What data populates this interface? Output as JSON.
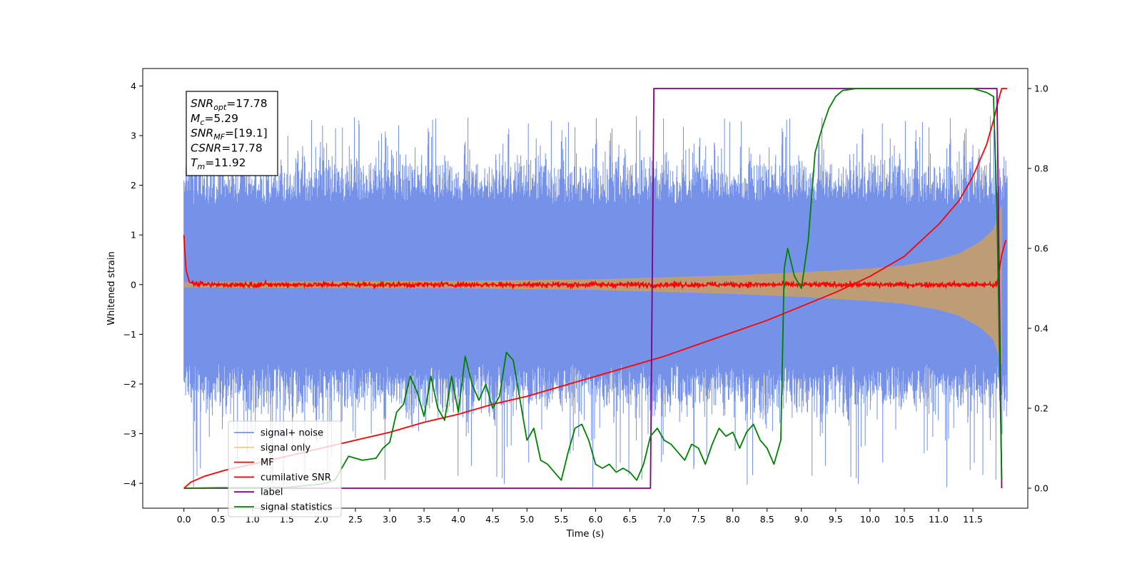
{
  "chart_data": {
    "type": "line",
    "xlabel": "Time (s)",
    "ylabel": "Whitened strain",
    "xlim": [
      -0.6,
      12.3
    ],
    "ylim": [
      -4.5,
      4.35
    ],
    "y2lim": [
      -0.05,
      1.05
    ],
    "xticks": [
      0.0,
      0.5,
      1.0,
      1.5,
      2.0,
      2.5,
      3.0,
      3.5,
      4.0,
      4.5,
      5.0,
      5.5,
      6.0,
      6.5,
      7.0,
      7.5,
      8.0,
      8.5,
      9.0,
      9.5,
      10.0,
      10.5,
      11.0,
      11.5
    ],
    "xtick_labels": [
      "0.0",
      "0.5",
      "1.0",
      "1.5",
      "2.0",
      "2.5",
      "3.0",
      "3.5",
      "4.0",
      "4.5",
      "5.0",
      "5.5",
      "6.0",
      "6.5",
      "7.0",
      "7.5",
      "8.0",
      "8.5",
      "9.0",
      "9.5",
      "10.0",
      "10.5",
      "11.0",
      "11.5"
    ],
    "yticks": [
      -4,
      -3,
      -2,
      -1,
      0,
      1,
      2,
      3,
      4
    ],
    "ytick_labels": [
      "−4",
      "−3",
      "−2",
      "−1",
      "0",
      "1",
      "2",
      "3",
      "4"
    ],
    "y2ticks": [
      0.0,
      0.2,
      0.4,
      0.6,
      0.8,
      1.0
    ],
    "y2tick_labels": [
      "0.0",
      "0.2",
      "0.4",
      "0.6",
      "0.8",
      "1.0"
    ],
    "grid": false,
    "legend_position": "lower-left",
    "colors": {
      "signal_noise": "#6a89e6",
      "signal_only": "#c8a070",
      "mf": "#ff0000",
      "cumulative_snr": "#ff0000",
      "label": "#800080",
      "signal_statistics": "#008000"
    },
    "info_box": [
      {
        "sym": "SNR",
        "sub": "opt",
        "val": "=17.78"
      },
      {
        "sym": "M",
        "sub": "c",
        "val": "=5.29"
      },
      {
        "sym": "SNR",
        "sub": "MF",
        "val": "=[19.1]"
      },
      {
        "sym": "CSNR",
        "sub": "",
        "val": "=17.78"
      },
      {
        "sym": "T",
        "sub": "m",
        "val": "=11.92"
      }
    ],
    "series": [
      {
        "name": "signal+ noise",
        "axis": "left",
        "style": "noise band",
        "duration": 12.0,
        "envelope": {
          "mean_high": 1.6,
          "mean_low": -1.6,
          "peak_high": 3.4,
          "peak_low": -4.1
        }
      },
      {
        "name": "signal only",
        "axis": "left",
        "style": "chirp envelope",
        "amplitude": {
          "t": [
            0.0,
            4.0,
            6.0,
            8.0,
            9.0,
            10.0,
            10.5,
            11.0,
            11.3,
            11.6,
            11.8,
            11.92
          ],
          "a": [
            0.05,
            0.07,
            0.1,
            0.18,
            0.24,
            0.32,
            0.38,
            0.5,
            0.62,
            0.85,
            1.1,
            1.6
          ]
        }
      },
      {
        "name": "MF",
        "axis": "left",
        "style": "noisy line",
        "points": {
          "t": [
            0.0,
            0.03,
            0.08,
            0.15,
            0.3,
            11.85,
            11.92,
            11.98
          ],
          "v": [
            1.0,
            0.3,
            0.05,
            0.02,
            0.0,
            0.0,
            0.6,
            0.9
          ]
        }
      },
      {
        "name": "cumilative SNR",
        "axis": "right",
        "x": [
          0.0,
          0.1,
          0.3,
          0.6,
          1.0,
          1.5,
          2.0,
          2.5,
          3.0,
          3.5,
          4.0,
          4.5,
          5.0,
          5.5,
          6.0,
          6.5,
          7.0,
          7.5,
          8.0,
          8.5,
          9.0,
          9.5,
          10.0,
          10.5,
          11.0,
          11.3,
          11.5,
          11.7,
          11.8,
          11.87,
          11.92,
          12.0
        ],
        "y": [
          0.0,
          0.015,
          0.03,
          0.045,
          0.06,
          0.08,
          0.1,
          0.12,
          0.14,
          0.165,
          0.185,
          0.21,
          0.23,
          0.255,
          0.28,
          0.305,
          0.33,
          0.36,
          0.39,
          0.42,
          0.455,
          0.49,
          0.53,
          0.58,
          0.66,
          0.72,
          0.78,
          0.86,
          0.92,
          0.97,
          1.0,
          1.0
        ]
      },
      {
        "name": "label",
        "axis": "right",
        "x": [
          0.0,
          6.8,
          6.85,
          11.85,
          11.92
        ],
        "y": [
          0.0,
          0.0,
          1.0,
          1.0,
          0.0
        ]
      },
      {
        "name": "signal statistics",
        "axis": "right",
        "x": [
          0.0,
          0.5,
          1.0,
          1.5,
          2.0,
          2.2,
          2.4,
          2.6,
          2.8,
          2.9,
          3.0,
          3.1,
          3.2,
          3.3,
          3.4,
          3.5,
          3.6,
          3.7,
          3.8,
          3.9,
          4.0,
          4.1,
          4.2,
          4.3,
          4.4,
          4.5,
          4.6,
          4.7,
          4.8,
          4.9,
          5.0,
          5.1,
          5.2,
          5.3,
          5.4,
          5.5,
          5.6,
          5.7,
          5.8,
          5.9,
          6.0,
          6.1,
          6.2,
          6.3,
          6.4,
          6.5,
          6.6,
          6.7,
          6.8,
          6.9,
          7.0,
          7.1,
          7.2,
          7.3,
          7.4,
          7.5,
          7.6,
          7.7,
          7.8,
          7.9,
          8.0,
          8.1,
          8.2,
          8.3,
          8.4,
          8.5,
          8.6,
          8.7,
          8.75,
          8.8,
          8.9,
          9.0,
          9.1,
          9.2,
          9.3,
          9.4,
          9.5,
          9.6,
          9.8,
          10.0,
          10.5,
          11.0,
          11.5,
          11.7,
          11.8,
          11.85,
          11.92
        ],
        "y": [
          0.0,
          0.001,
          0.001,
          0.002,
          0.01,
          0.02,
          0.08,
          0.07,
          0.075,
          0.1,
          0.115,
          0.19,
          0.21,
          0.28,
          0.24,
          0.18,
          0.28,
          0.2,
          0.17,
          0.28,
          0.19,
          0.33,
          0.26,
          0.22,
          0.26,
          0.2,
          0.23,
          0.34,
          0.32,
          0.22,
          0.12,
          0.15,
          0.07,
          0.06,
          0.04,
          0.02,
          0.09,
          0.15,
          0.16,
          0.12,
          0.06,
          0.05,
          0.06,
          0.04,
          0.05,
          0.04,
          0.02,
          0.06,
          0.13,
          0.15,
          0.12,
          0.11,
          0.09,
          0.07,
          0.11,
          0.1,
          0.06,
          0.11,
          0.15,
          0.13,
          0.14,
          0.1,
          0.14,
          0.16,
          0.12,
          0.1,
          0.06,
          0.12,
          0.55,
          0.6,
          0.53,
          0.5,
          0.62,
          0.84,
          0.9,
          0.95,
          0.98,
          0.995,
          1.0,
          1.0,
          1.0,
          1.0,
          1.0,
          0.99,
          0.98,
          0.7,
          0.02
        ]
      }
    ]
  }
}
